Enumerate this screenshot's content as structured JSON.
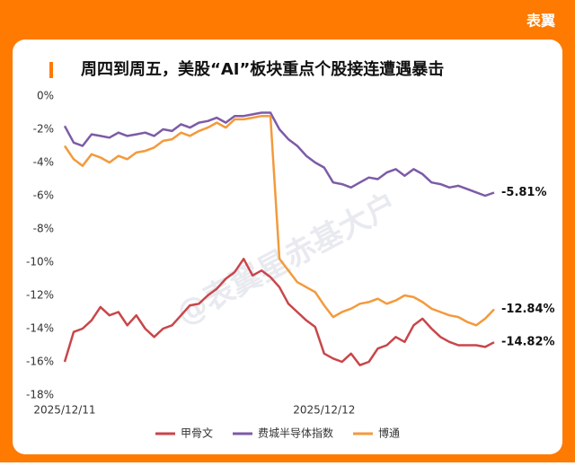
{
  "brand": "表翼",
  "chart_data": {
    "type": "line",
    "title": "周四到周五，美股“AI”板块重点个股接连遭遇暴击",
    "watermark": "@表翼星赤基大户",
    "categories": [
      "2025/12/11",
      null,
      null,
      null,
      null,
      null,
      null,
      null,
      null,
      null,
      null,
      null,
      null,
      null,
      null,
      null,
      null,
      null,
      null,
      null,
      null,
      null,
      null,
      null,
      null,
      null,
      null,
      null,
      null,
      "2025/12/12",
      null,
      null,
      null,
      null,
      null,
      null,
      null,
      null,
      null,
      null,
      null,
      null,
      null,
      null,
      null,
      null,
      null,
      null,
      null
    ],
    "series": [
      {
        "name": "甲骨文",
        "color": "#c8464a",
        "values": [
          -16.0,
          -14.2,
          -14.0,
          -13.5,
          -12.7,
          -13.2,
          -13.0,
          -13.8,
          -13.2,
          -14.0,
          -14.5,
          -14.0,
          -13.8,
          -13.2,
          -12.6,
          -12.5,
          -12.0,
          -11.6,
          -11.0,
          -10.6,
          -9.8,
          -10.8,
          -10.5,
          -10.9,
          -11.5,
          -12.5,
          -13.0,
          -13.5,
          -13.9,
          -15.5,
          -15.8,
          -16.0,
          -15.5,
          -16.2,
          -16.0,
          -15.2,
          -15.0,
          -14.5,
          -14.8,
          -13.8,
          -13.4,
          -14.0,
          -14.5,
          -14.8,
          -15.0,
          -15.0,
          -15.0,
          -15.1,
          -14.82
        ],
        "value_labels": [
          null,
          null,
          null,
          null,
          null,
          null,
          null,
          null,
          null,
          null,
          null,
          null,
          null,
          null,
          null,
          null,
          null,
          null,
          null,
          null,
          null,
          null,
          null,
          null,
          null,
          null,
          null,
          null,
          null,
          null,
          null,
          null,
          null,
          null,
          null,
          null,
          null,
          null,
          null,
          null,
          null,
          null,
          null,
          null,
          null,
          null,
          null,
          null,
          "-14.82%"
        ]
      },
      {
        "name": "费城半导体指数",
        "color": "#7d5ba6",
        "values": [
          -1.8,
          -2.8,
          -3.0,
          -2.3,
          -2.4,
          -2.5,
          -2.2,
          -2.4,
          -2.3,
          -2.2,
          -2.4,
          -2.0,
          -2.1,
          -1.7,
          -1.9,
          -1.6,
          -1.5,
          -1.3,
          -1.6,
          -1.2,
          -1.2,
          -1.1,
          -1.0,
          -1.0,
          -2.0,
          -2.6,
          -3.0,
          -3.6,
          -4.0,
          -4.3,
          -5.2,
          -5.3,
          -5.5,
          -5.2,
          -4.9,
          -5.0,
          -4.6,
          -4.4,
          -4.8,
          -4.4,
          -4.7,
          -5.2,
          -5.3,
          -5.5,
          -5.4,
          -5.6,
          -5.8,
          -6.0,
          -5.81
        ],
        "value_labels": [
          null,
          null,
          null,
          null,
          null,
          null,
          null,
          null,
          null,
          null,
          null,
          null,
          null,
          null,
          null,
          null,
          null,
          null,
          null,
          null,
          null,
          null,
          null,
          null,
          null,
          null,
          null,
          null,
          null,
          null,
          null,
          null,
          null,
          null,
          null,
          null,
          null,
          null,
          null,
          null,
          null,
          null,
          null,
          null,
          null,
          null,
          null,
          null,
          "-5.81%"
        ]
      },
      {
        "name": "博通",
        "color": "#f39a3c",
        "values": [
          -3.0,
          -3.8,
          -4.2,
          -3.5,
          -3.7,
          -4.0,
          -3.6,
          -3.8,
          -3.4,
          -3.3,
          -3.1,
          -2.7,
          -2.6,
          -2.2,
          -2.4,
          -2.1,
          -1.9,
          -1.6,
          -1.9,
          -1.4,
          -1.4,
          -1.3,
          -1.2,
          -1.2,
          -9.8,
          -10.5,
          -11.2,
          -11.5,
          -11.8,
          -12.6,
          -13.3,
          -13.0,
          -12.8,
          -12.5,
          -12.4,
          -12.2,
          -12.5,
          -12.3,
          -12.0,
          -12.1,
          -12.4,
          -12.8,
          -13.0,
          -13.2,
          -13.3,
          -13.6,
          -13.8,
          -13.4,
          -12.84
        ],
        "value_labels": [
          null,
          null,
          null,
          null,
          null,
          null,
          null,
          null,
          null,
          null,
          null,
          null,
          null,
          null,
          null,
          null,
          null,
          null,
          null,
          null,
          null,
          null,
          null,
          null,
          null,
          null,
          null,
          null,
          null,
          null,
          null,
          null,
          null,
          null,
          null,
          null,
          null,
          null,
          null,
          null,
          null,
          null,
          null,
          null,
          null,
          null,
          null,
          null,
          "-12.84%"
        ]
      }
    ],
    "ylim": [
      -18,
      0
    ],
    "yticks": [
      {
        "value": 0,
        "label": "0%"
      },
      {
        "value": -2,
        "label": "-2%"
      },
      {
        "value": -4,
        "label": "-4%"
      },
      {
        "value": -6,
        "label": "-6%"
      },
      {
        "value": -8,
        "label": "-8%"
      },
      {
        "value": -10,
        "label": "-10%"
      },
      {
        "value": -12,
        "label": "-12%"
      },
      {
        "value": -14,
        "label": "-14%"
      },
      {
        "value": -16,
        "label": "-16%"
      },
      {
        "value": -18,
        "label": "-18%"
      }
    ],
    "legend": "bottom"
  }
}
